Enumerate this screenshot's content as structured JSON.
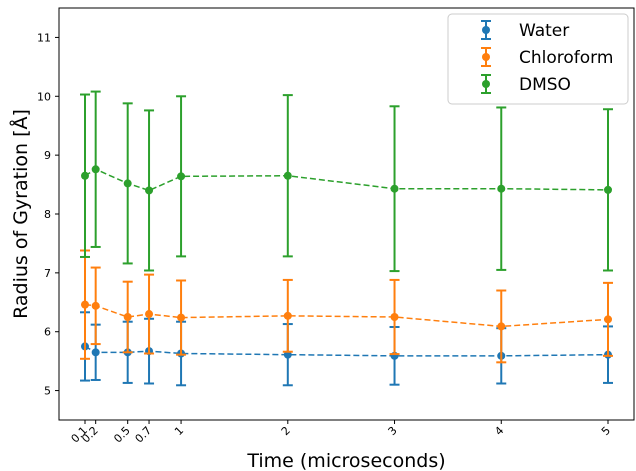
{
  "chart_data": {
    "type": "line",
    "xlabel": "Time (microseconds)",
    "ylabel": "Radius of Gyration [Å]",
    "x_ticks": [
      0.1,
      0.2,
      0.5,
      0.7,
      1,
      2,
      3,
      4,
      5
    ],
    "x_tick_labels": [
      "0.1",
      "0.2",
      "0.5",
      "0.7",
      "1",
      "2",
      "3",
      "4",
      "5"
    ],
    "y_ticks": [
      5,
      6,
      7,
      8,
      9,
      10,
      11
    ],
    "y_tick_labels": [
      "5",
      "6",
      "7",
      "8",
      "9",
      "10",
      "11"
    ],
    "xlim": [
      0.1,
      5.0
    ],
    "ylim": [
      4.5,
      11.5
    ],
    "legend_position": "top-right",
    "grid": false,
    "error_bars": true,
    "series": [
      {
        "name": "Water",
        "color": "#1f77b4",
        "x": [
          0.1,
          0.2,
          0.5,
          0.7,
          1,
          2,
          3,
          4,
          5
        ],
        "y": [
          5.75,
          5.65,
          5.65,
          5.67,
          5.63,
          5.61,
          5.59,
          5.59,
          5.61
        ],
        "err": [
          0.58,
          0.47,
          0.52,
          0.55,
          0.54,
          0.52,
          0.49,
          0.47,
          0.48
        ]
      },
      {
        "name": "Chloroform",
        "color": "#ff7f0e",
        "x": [
          0.1,
          0.2,
          0.5,
          0.7,
          1,
          2,
          3,
          4,
          5
        ],
        "y": [
          6.46,
          6.44,
          6.25,
          6.3,
          6.24,
          6.27,
          6.25,
          6.09,
          6.21
        ],
        "err": [
          0.92,
          0.65,
          0.6,
          0.67,
          0.63,
          0.61,
          0.63,
          0.61,
          0.62
        ]
      },
      {
        "name": "DMSO",
        "color": "#2ca02c",
        "x": [
          0.1,
          0.2,
          0.5,
          0.7,
          1,
          2,
          3,
          4,
          5
        ],
        "y": [
          8.65,
          8.76,
          8.52,
          8.4,
          8.64,
          8.65,
          8.43,
          8.43,
          8.41
        ],
        "err": [
          1.38,
          1.32,
          1.36,
          1.36,
          1.36,
          1.37,
          1.4,
          1.38,
          1.37
        ]
      }
    ]
  }
}
